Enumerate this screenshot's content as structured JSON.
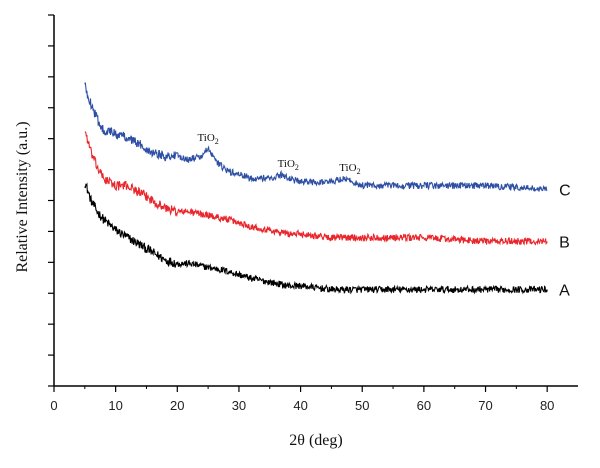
{
  "chart_data": {
    "type": "line",
    "xlabel": "2θ (deg)",
    "ylabel": "Relative Intensity (a.u.)",
    "xlim": [
      0,
      85
    ],
    "xticks": [
      0,
      10,
      20,
      30,
      40,
      50,
      60,
      70,
      80
    ],
    "ylim": [
      0,
      1
    ],
    "y_tick_count": 12,
    "y_ticks_labeled": false,
    "grid": false,
    "series": [
      {
        "name": "A",
        "color": "#000000",
        "x": [
          5,
          6,
          7,
          8,
          10,
          12,
          14,
          16,
          18,
          20,
          22,
          25,
          28,
          30,
          32,
          35,
          38,
          40,
          45,
          50,
          55,
          60,
          70,
          80
        ],
        "y": [
          0.55,
          0.5,
          0.47,
          0.45,
          0.42,
          0.4,
          0.38,
          0.36,
          0.34,
          0.33,
          0.33,
          0.32,
          0.31,
          0.3,
          0.29,
          0.28,
          0.27,
          0.27,
          0.26,
          0.26,
          0.26,
          0.26,
          0.26,
          0.26
        ]
      },
      {
        "name": "B",
        "color": "#e8262b",
        "x": [
          5,
          6,
          7,
          8,
          10,
          12,
          14,
          16,
          18,
          20,
          22,
          25,
          28,
          30,
          32,
          35,
          38,
          40,
          45,
          50,
          55,
          60,
          70,
          80
        ],
        "y": [
          0.69,
          0.63,
          0.59,
          0.56,
          0.54,
          0.54,
          0.52,
          0.5,
          0.48,
          0.47,
          0.47,
          0.46,
          0.45,
          0.44,
          0.43,
          0.42,
          0.41,
          0.41,
          0.4,
          0.4,
          0.4,
          0.4,
          0.39,
          0.39
        ]
      },
      {
        "name": "C",
        "color": "#2e4fa3",
        "x": [
          5,
          6,
          7,
          8,
          10,
          12,
          14,
          16,
          18,
          20,
          22,
          24,
          25,
          26,
          28,
          30,
          32,
          35,
          37,
          38,
          40,
          45,
          47,
          50,
          55,
          60,
          70,
          80
        ],
        "y": [
          0.81,
          0.76,
          0.72,
          0.69,
          0.68,
          0.67,
          0.65,
          0.63,
          0.62,
          0.62,
          0.61,
          0.62,
          0.64,
          0.61,
          0.58,
          0.57,
          0.56,
          0.56,
          0.57,
          0.56,
          0.55,
          0.55,
          0.56,
          0.54,
          0.54,
          0.54,
          0.54,
          0.53
        ]
      }
    ],
    "annotations": [
      {
        "text": "TiO",
        "sub": "2",
        "x": 25,
        "y": 0.66
      },
      {
        "text": "TiO",
        "sub": "2",
        "x": 38,
        "y": 0.59
      },
      {
        "text": "TiO",
        "sub": "2",
        "x": 48,
        "y": 0.58
      }
    ]
  }
}
